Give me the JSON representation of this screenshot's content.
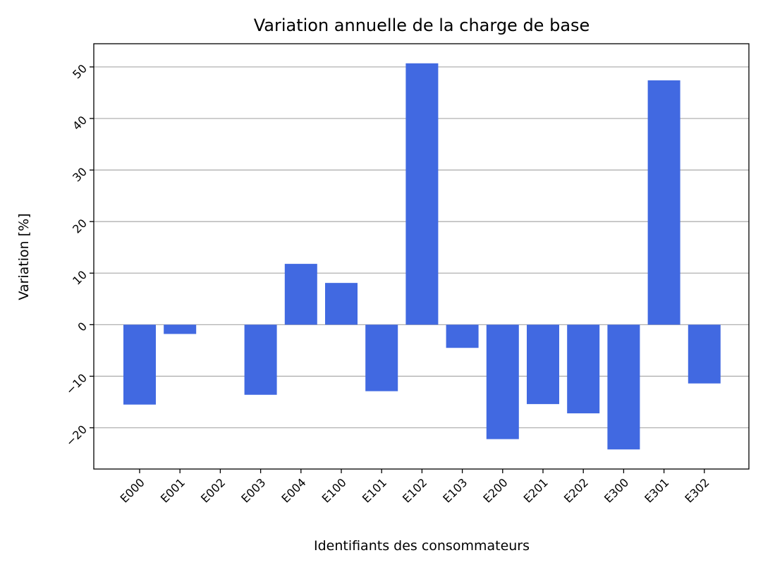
{
  "chart_data": {
    "type": "bar",
    "title": "Variation annuelle de la charge de base",
    "xlabel": "Identifiants des consommateurs",
    "ylabel": "Variation [%]",
    "categories": [
      "E000",
      "E001",
      "E002",
      "E003",
      "E004",
      "E100",
      "E101",
      "E102",
      "E103",
      "E200",
      "E201",
      "E202",
      "E300",
      "E301",
      "E302"
    ],
    "values": [
      -15.5,
      -1.8,
      0,
      -13.6,
      11.8,
      8.1,
      -12.9,
      50.7,
      -4.5,
      -22.2,
      -15.4,
      -17.2,
      -24.2,
      47.4,
      -11.4
    ],
    "ylim": [
      -28,
      54.5
    ],
    "yticks": [
      -20,
      -10,
      0,
      10,
      20,
      30,
      40,
      50
    ],
    "ytick_labels": [
      "−20",
      "−10",
      "0",
      "10",
      "20",
      "30",
      "40",
      "50"
    ],
    "grid": "horizontal",
    "bar_color": "#4169e1",
    "grid_color": "#b0b0b0"
  }
}
